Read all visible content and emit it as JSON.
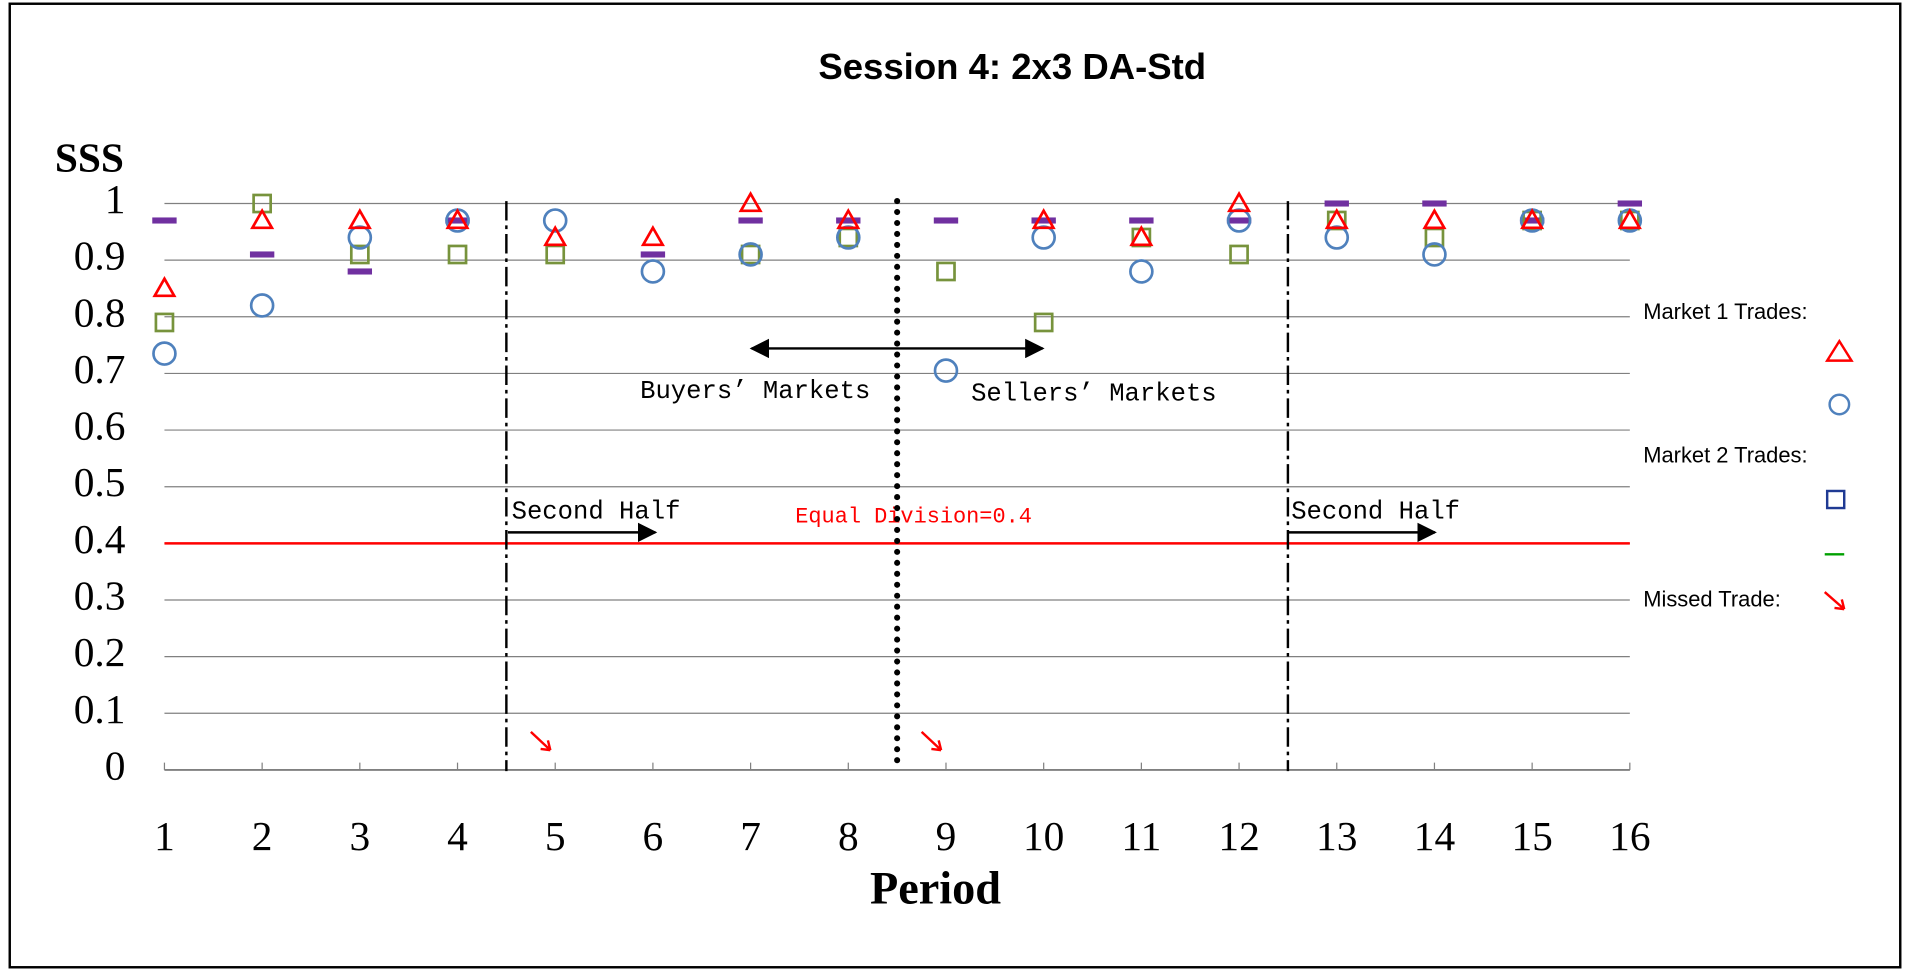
{
  "chart_data": {
    "type": "scatter",
    "title": "Session 4: 2x3 DA-Std",
    "y_label": "SSS",
    "x_label": "Period",
    "x": [
      1,
      2,
      3,
      4,
      5,
      6,
      7,
      8,
      9,
      10,
      11,
      12,
      13,
      14,
      15,
      16
    ],
    "xlim": [
      1,
      16
    ],
    "xticks": [
      1,
      2,
      3,
      4,
      5,
      6,
      7,
      8,
      9,
      10,
      11,
      12,
      13,
      14,
      15,
      16
    ],
    "ylim": [
      0,
      1
    ],
    "yticks": [
      0,
      0.1,
      0.2,
      0.3,
      0.4,
      0.5,
      0.6,
      0.7,
      0.8,
      0.9,
      1
    ],
    "grid": true,
    "series": [
      {
        "marker": "triangle",
        "color": "#ff0000",
        "values": [
          0.85,
          0.97,
          0.97,
          0.97,
          0.94,
          0.94,
          1.0,
          0.97,
          null,
          0.97,
          0.94,
          1.0,
          0.97,
          0.97,
          0.97,
          0.97
        ]
      },
      {
        "marker": "circle",
        "color": "#4f81bd",
        "values": [
          0.735,
          0.82,
          0.94,
          0.97,
          0.97,
          0.88,
          0.91,
          0.94,
          0.705,
          0.94,
          0.88,
          0.97,
          0.94,
          0.91,
          0.97,
          0.97
        ]
      },
      {
        "marker": "square",
        "color": "#77933c",
        "values": [
          0.79,
          1.0,
          0.91,
          0.91,
          0.91,
          null,
          0.91,
          0.94,
          0.88,
          0.79,
          0.94,
          0.91,
          0.97,
          0.94,
          0.97,
          0.97
        ]
      },
      {
        "marker": "dash",
        "color": "#7030a0",
        "values": [
          0.97,
          0.91,
          0.88,
          0.97,
          null,
          0.91,
          0.97,
          0.97,
          0.97,
          0.97,
          0.97,
          0.97,
          1.0,
          1.0,
          0.97,
          1.0
        ]
      }
    ],
    "missed_trades": {
      "marker": "arrow",
      "color": "#ff0000",
      "x": [
        5,
        9
      ],
      "values": [
        0.05,
        0.05
      ]
    },
    "vlines": [
      {
        "x": 4.5,
        "style": "dashdot"
      },
      {
        "x": 8.5,
        "style": "dotted"
      },
      {
        "x": 12.5,
        "style": "dashdot"
      }
    ],
    "hline": {
      "y": 0.4,
      "color": "#ff0000",
      "label": "Equal Division=0.4"
    },
    "annotations": [
      "Second Half",
      "Buyers’ Markets",
      "Sellers’ Markets",
      "Second Half"
    ],
    "legend": [
      "Market 1 Trades:",
      "Market 2 Trades:",
      "Missed Trade:"
    ]
  }
}
